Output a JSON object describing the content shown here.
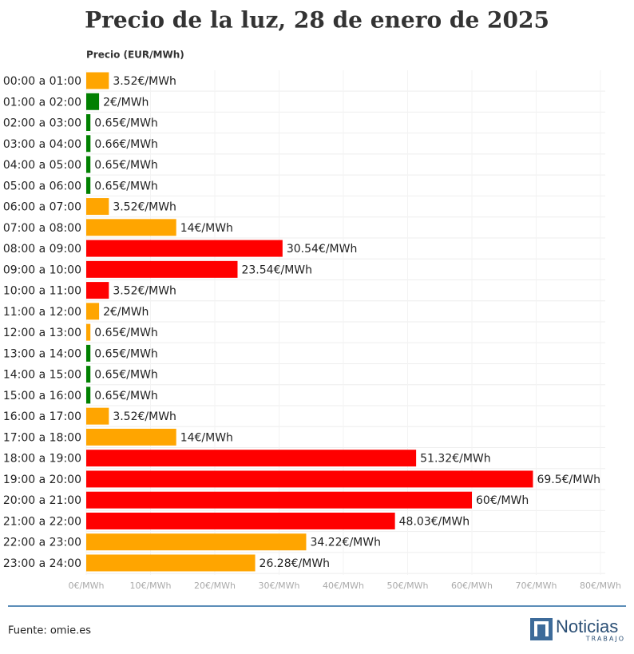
{
  "chart_data": {
    "type": "barh",
    "title": "Precio de la luz, 28 de enero de 2025",
    "value_axis_label": "Precio (EUR/MWh)",
    "categories": [
      "00:00 a 01:00",
      "01:00 a 02:00",
      "02:00 a 03:00",
      "03:00 a 04:00",
      "04:00 a 05:00",
      "05:00 a 06:00",
      "06:00 a 07:00",
      "07:00 a 08:00",
      "08:00 a 09:00",
      "09:00 a 10:00",
      "10:00 a 11:00",
      "11:00 a 12:00",
      "12:00 a 13:00",
      "13:00 a 14:00",
      "14:00 a 15:00",
      "15:00 a 16:00",
      "16:00 a 17:00",
      "17:00 a 18:00",
      "18:00 a 19:00",
      "19:00 a 20:00",
      "20:00 a 21:00",
      "21:00 a 22:00",
      "22:00 a 23:00",
      "23:00 a 24:00"
    ],
    "values": [
      3.52,
      2,
      0.65,
      0.66,
      0.65,
      0.65,
      3.52,
      14,
      30.54,
      23.54,
      3.52,
      2,
      0.65,
      0.65,
      0.65,
      0.65,
      3.52,
      14,
      51.32,
      69.5,
      60,
      48.03,
      34.22,
      26.28
    ],
    "value_labels": [
      "3.52€/MWh",
      "2€/MWh",
      "0.65€/MWh",
      "0.66€/MWh",
      "0.65€/MWh",
      "0.65€/MWh",
      "3.52€/MWh",
      "14€/MWh",
      "30.54€/MWh",
      "23.54€/MWh",
      "3.52€/MWh",
      "2€/MWh",
      "0.65€/MWh",
      "0.65€/MWh",
      "0.65€/MWh",
      "0.65€/MWh",
      "3.52€/MWh",
      "14€/MWh",
      "51.32€/MWh",
      "69.5€/MWh",
      "60€/MWh",
      "48.03€/MWh",
      "34.22€/MWh",
      "26.28€/MWh"
    ],
    "colors": [
      "#ffa500",
      "#008000",
      "#008000",
      "#008000",
      "#008000",
      "#008000",
      "#ffa500",
      "#ffa500",
      "#ff0000",
      "#ff0000",
      "#ff0000",
      "#ffa500",
      "#ffa500",
      "#008000",
      "#008000",
      "#008000",
      "#ffa500",
      "#ffa500",
      "#ff0000",
      "#ff0000",
      "#ff0000",
      "#ff0000",
      "#ffa500",
      "#ffa500"
    ],
    "xlim": [
      0,
      80
    ],
    "xticks": [
      {
        "value": 0,
        "label": "0€/MWh"
      },
      {
        "value": 10,
        "label": "10€/MWh"
      },
      {
        "value": 20,
        "label": "20€/MWh"
      },
      {
        "value": 30,
        "label": "30€/MWh"
      },
      {
        "value": 40,
        "label": "40€/MWh"
      },
      {
        "value": 50,
        "label": "50€/MWh"
      },
      {
        "value": 60,
        "label": "60€/MWh"
      },
      {
        "value": 70,
        "label": "70€/MWh"
      },
      {
        "value": 80,
        "label": "80€/MWh"
      }
    ],
    "grid": true
  },
  "source": "Fuente: omie.es",
  "logo": {
    "name": "Noticias",
    "subname": "TRABAJO"
  }
}
